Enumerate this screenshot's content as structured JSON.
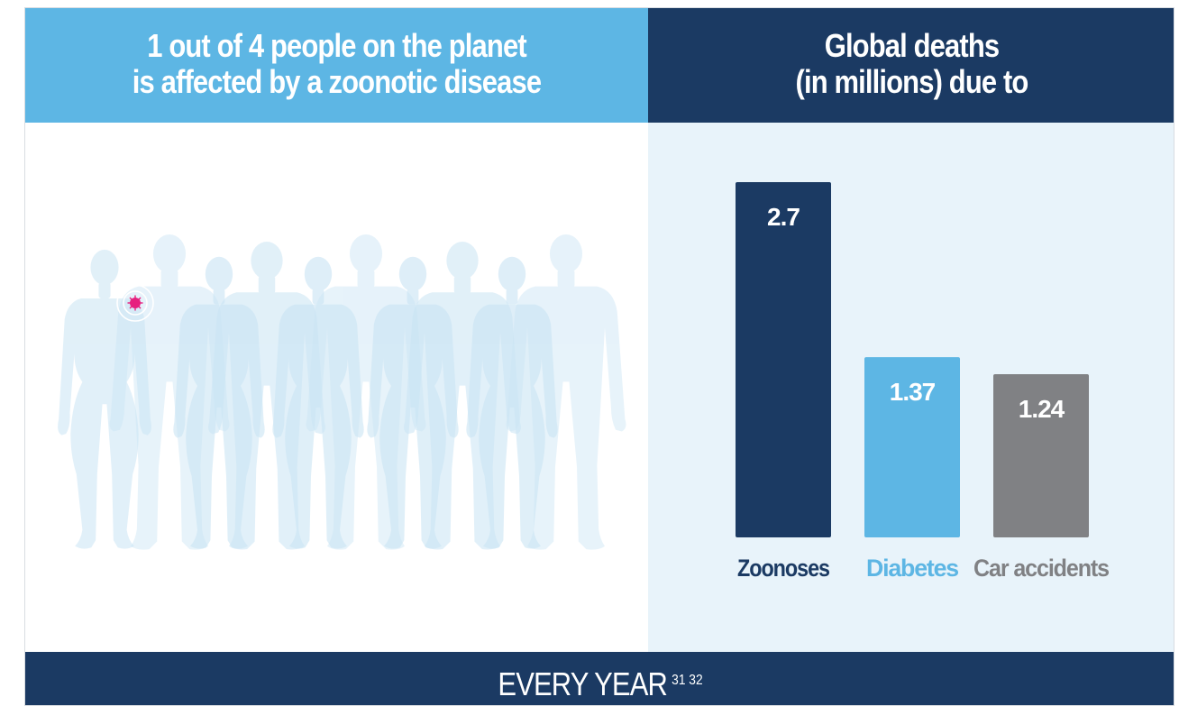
{
  "left_header": {
    "line1": "1 out of 4 people on the planet",
    "line2": "is affected by a zoonotic disease"
  },
  "right_header": {
    "line1": "Global deaths",
    "line2": "(in millions) due to"
  },
  "footer": {
    "text": "EVERY YEAR",
    "refs": "31  32"
  },
  "illustration": {
    "affected_count": 1,
    "total_count": 4,
    "figures": [
      {
        "kind": "male",
        "color": "#1b3a63",
        "affected": true
      },
      {
        "kind": "female",
        "color": "#5db6e4",
        "affected": false
      },
      {
        "kind": "male",
        "color": "#5db6e4",
        "affected": false
      },
      {
        "kind": "female",
        "color": "#5db6e4",
        "affected": false
      }
    ],
    "background_color": "#c9e4f4",
    "marker_color": "#e6207e"
  },
  "chart_data": {
    "type": "bar",
    "categories": [
      "Zoonoses",
      "Diabetes",
      "Car accidents"
    ],
    "values": [
      2.7,
      1.37,
      1.24
    ],
    "value_labels": [
      "2.7",
      "1.37",
      "1.24"
    ],
    "colors": [
      "#1b3a63",
      "#5db6e4",
      "#808184"
    ],
    "label_colors": [
      "#1b3a63",
      "#5db6e4",
      "#808184"
    ],
    "ylim": [
      0,
      2.7
    ],
    "grid": false,
    "legend": "none"
  }
}
